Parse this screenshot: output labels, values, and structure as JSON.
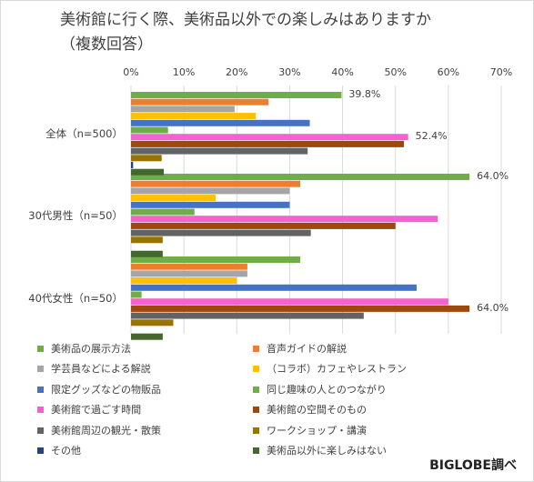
{
  "chart_data": {
    "type": "bar",
    "orientation": "horizontal",
    "title": "美術館に行く際、美術品以外での楽しみはありますか\n（複数回答）",
    "xlim": [
      0,
      70
    ],
    "x_ticks": [
      "0%",
      "10%",
      "20%",
      "30%",
      "40%",
      "50%",
      "60%",
      "70%"
    ],
    "grid": true,
    "legend_position": "bottom",
    "categories": [
      "全体（n=500）",
      "30代男性（n=50）",
      "40代女性（n=50）"
    ],
    "series": [
      {
        "name": "美術品の展示方法",
        "color": "#70ad47",
        "values": [
          39.8,
          64.0,
          32.0
        ]
      },
      {
        "name": "音声ガイドの解説",
        "color": "#ed7d31",
        "values": [
          26.0,
          32.0,
          22.0
        ]
      },
      {
        "name": "学芸員などによる解説",
        "color": "#a5a5a5",
        "values": [
          19.6,
          30.0,
          22.0
        ]
      },
      {
        "name": "（コラボ）カフェやレストラン",
        "color": "#ffc000",
        "values": [
          23.6,
          16.0,
          20.0
        ]
      },
      {
        "name": "限定グッズなどの物販品",
        "color": "#4472c4",
        "values": [
          33.8,
          30.0,
          54.0
        ]
      },
      {
        "name": "同じ趣味の人とのつながり",
        "color": "#70ad47",
        "values": [
          7.0,
          12.0,
          2.0
        ]
      },
      {
        "name": "美術館で過ごす時間",
        "color": "#f660d0",
        "values": [
          52.4,
          58.0,
          60.0
        ]
      },
      {
        "name": "美術館の空間そのもの",
        "color": "#9e480e",
        "values": [
          51.6,
          50.0,
          64.0
        ]
      },
      {
        "name": "美術館周辺の観光・散策",
        "color": "#636363",
        "values": [
          33.4,
          34.0,
          44.0
        ]
      },
      {
        "name": "ワークショップ・講演",
        "color": "#997300",
        "values": [
          5.8,
          6.0,
          8.0
        ]
      },
      {
        "name": "その他",
        "color": "#264478",
        "values": [
          0.4,
          0,
          0
        ]
      },
      {
        "name": "美術品以外に楽しみはない",
        "color": "#43682b",
        "values": [
          6.2,
          6.0,
          6.0
        ]
      }
    ],
    "annotations": [
      {
        "category_index": 0,
        "series_index": 0,
        "text": "39.8%"
      },
      {
        "category_index": 0,
        "series_index": 6,
        "text": "52.4%"
      },
      {
        "category_index": 1,
        "series_index": 0,
        "text": "64.0%"
      },
      {
        "category_index": 2,
        "series_index": 7,
        "text": "64.0%"
      }
    ]
  },
  "source_credit": "BIGLOBE調べ"
}
